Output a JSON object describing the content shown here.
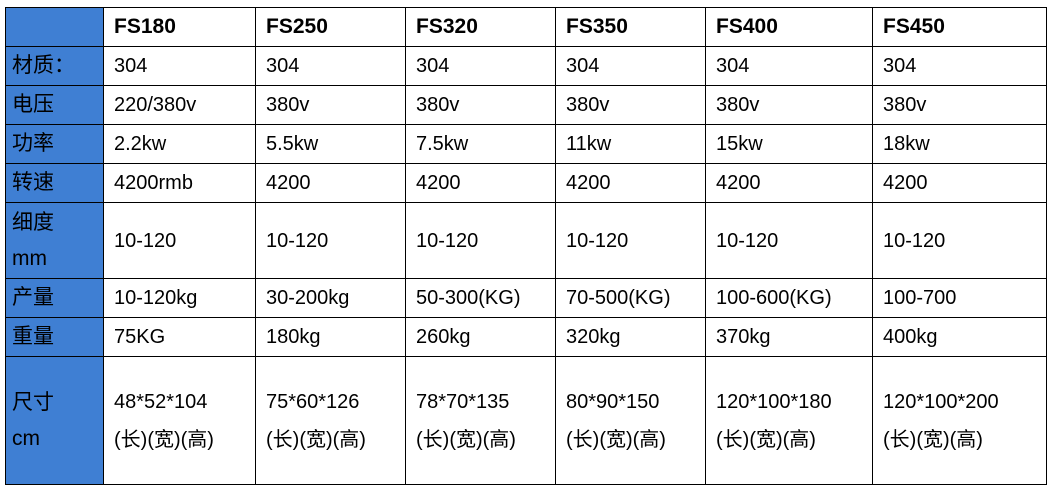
{
  "table": {
    "columns": [
      "FS180",
      "FS250",
      "FS320",
      "FS350",
      "FS400",
      "FS450"
    ],
    "rows": [
      {
        "label": [
          "材质："
        ],
        "cells": [
          [
            "304"
          ],
          [
            "304"
          ],
          [
            "304"
          ],
          [
            "304"
          ],
          [
            "304"
          ],
          [
            "304"
          ]
        ]
      },
      {
        "label": [
          "电压"
        ],
        "cells": [
          [
            "220/380v"
          ],
          [
            "380v"
          ],
          [
            "380v"
          ],
          [
            "380v"
          ],
          [
            "380v"
          ],
          [
            "380v"
          ]
        ]
      },
      {
        "label": [
          "功率"
        ],
        "cells": [
          [
            "2.2kw"
          ],
          [
            "5.5kw"
          ],
          [
            "7.5kw"
          ],
          [
            "11kw"
          ],
          [
            "15kw"
          ],
          [
            "18kw"
          ]
        ]
      },
      {
        "label": [
          "转速"
        ],
        "cells": [
          [
            "4200rmb"
          ],
          [
            "4200"
          ],
          [
            "4200"
          ],
          [
            "4200"
          ],
          [
            "4200"
          ],
          [
            "4200"
          ]
        ]
      },
      {
        "label": [
          "细度",
          "mm"
        ],
        "cells": [
          [
            "10-120"
          ],
          [
            "10-120"
          ],
          [
            "10-120"
          ],
          [
            "10-120"
          ],
          [
            "10-120"
          ],
          [
            "10-120"
          ]
        ]
      },
      {
        "label": [
          "产量"
        ],
        "cells": [
          [
            "10-120kg"
          ],
          [
            "30-200kg"
          ],
          [
            "50-300(KG)"
          ],
          [
            "70-500(KG)"
          ],
          [
            "100-600(KG)"
          ],
          [
            "100-700"
          ]
        ]
      },
      {
        "label": [
          "重量"
        ],
        "cells": [
          [
            "75KG"
          ],
          [
            "180kg"
          ],
          [
            "260kg"
          ],
          [
            "320kg"
          ],
          [
            "370kg"
          ],
          [
            "400kg"
          ]
        ]
      },
      {
        "label": [
          "尺寸",
          "cm"
        ],
        "cells": [
          [
            "48*52*104",
            "(长)(宽)(高)"
          ],
          [
            "75*60*126",
            "(长)(宽)(高)"
          ],
          [
            "78*70*135",
            "(长)(宽)(高)"
          ],
          [
            "80*90*150",
            "(长)(宽)(高)"
          ],
          [
            "120*100*180",
            "(长)(宽)(高)"
          ],
          [
            "120*100*200",
            "(长)(宽)(高)"
          ]
        ]
      }
    ]
  }
}
